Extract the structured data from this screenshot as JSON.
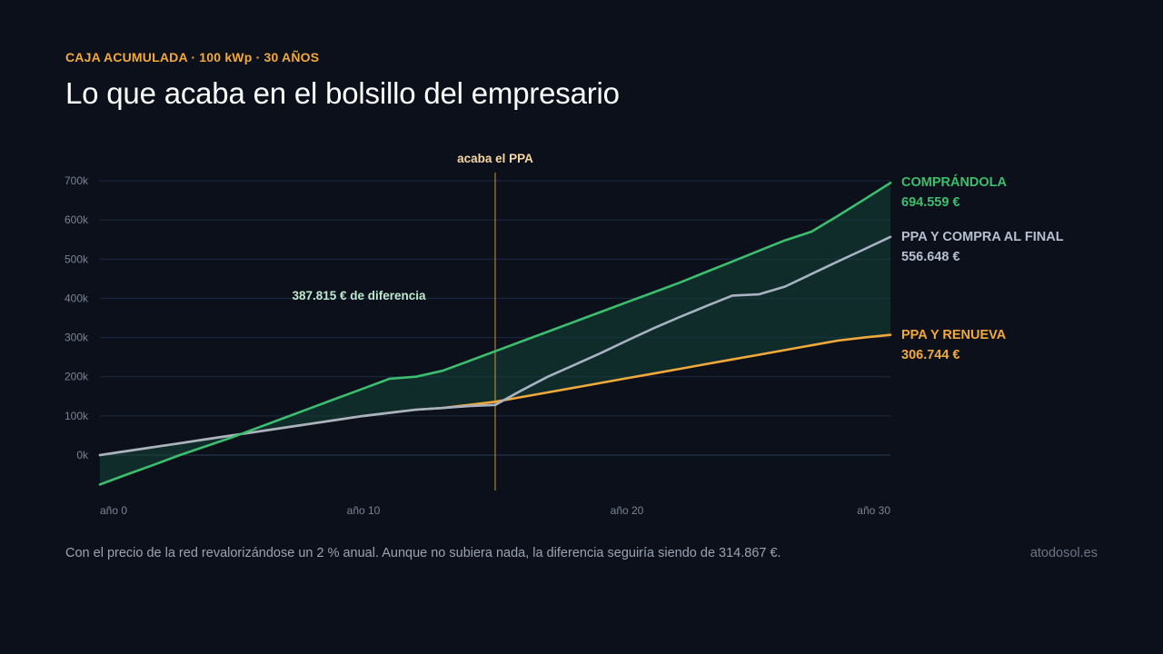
{
  "header": {
    "eyebrow": "CAJA ACUMULADA · 100 kWp · 30 AÑOS",
    "title": "Lo que acaba en el bolsillo del empresario"
  },
  "footer": {
    "note": "Con el precio de la red revalorizándose un 2 % anual. Aunque no subiera nada, la diferencia seguiría siendo de 314.867 €.",
    "brand": "atodosol.es"
  },
  "chart_data": {
    "type": "line",
    "x_ticks": [
      0,
      10,
      20,
      30
    ],
    "x_tick_labels": [
      "año 0",
      "año 10",
      "año 20",
      "año 30"
    ],
    "xlim": [
      0,
      30
    ],
    "ylim": [
      -80000,
      700000
    ],
    "y_ticks": [
      0,
      100000,
      200000,
      300000,
      400000,
      500000,
      600000,
      700000
    ],
    "y_tick_labels": [
      "0k",
      "100k",
      "200k",
      "300k",
      "400k",
      "500k",
      "600k",
      "700k"
    ],
    "grid": true,
    "marker": {
      "x": 15,
      "label": "acaba el PPA",
      "color": "#f2a93b"
    },
    "difference_label": "387.815 € de diferencia",
    "colors": {
      "green": "#3dbd6e",
      "gray": "#a8b2c3",
      "orange": "#f2a93b",
      "fill": "#14443a",
      "grid": "#1c2a45",
      "axis_text": "#7a8496"
    },
    "series": [
      {
        "name": "COMPRÁNDOLA",
        "value_label": "694.559 €",
        "color": "#3dbd6e",
        "x": [
          0,
          1,
          2,
          3,
          4,
          5,
          6,
          7,
          8,
          9,
          10,
          11,
          12,
          13,
          14,
          15,
          16,
          17,
          18,
          19,
          20,
          21,
          22,
          23,
          24,
          25,
          26,
          27,
          28,
          29,
          30
        ],
        "y": [
          -75000,
          -50000,
          -26000,
          -1000,
          22000,
          45000,
          70000,
          95000,
          120000,
          145000,
          170000,
          195000,
          200000,
          215000,
          240000,
          265000,
          290000,
          315000,
          340000,
          365000,
          390000,
          415000,
          440000,
          467000,
          494000,
          521000,
          548000,
          570000,
          610000,
          652000,
          694559
        ]
      },
      {
        "name": "PPA Y COMPRA AL FINAL",
        "value_label": "556.648 €",
        "color": "#a8b2c3",
        "x": [
          0,
          1,
          2,
          3,
          4,
          5,
          6,
          7,
          8,
          9,
          10,
          11,
          12,
          13,
          14,
          15,
          16,
          17,
          18,
          19,
          20,
          21,
          22,
          23,
          24,
          25,
          26,
          27,
          28,
          29,
          30
        ],
        "y": [
          0,
          10000,
          20000,
          30000,
          40000,
          50000,
          60000,
          70000,
          80000,
          90000,
          100000,
          108000,
          116000,
          120000,
          125000,
          128000,
          165000,
          200000,
          230000,
          260000,
          292000,
          323000,
          352000,
          380000,
          407000,
          410000,
          430000,
          462000,
          494000,
          525000,
          556648
        ]
      },
      {
        "name": "PPA Y RENUEVA",
        "value_label": "306.744 €",
        "color": "#f2a93b",
        "x": [
          0,
          1,
          2,
          3,
          4,
          5,
          6,
          7,
          8,
          9,
          10,
          11,
          12,
          13,
          14,
          15,
          16,
          17,
          18,
          19,
          20,
          21,
          22,
          23,
          24,
          25,
          26,
          27,
          28,
          29,
          30
        ],
        "y": [
          0,
          10000,
          20000,
          30000,
          40000,
          50000,
          60000,
          70000,
          80000,
          90000,
          100000,
          108000,
          116000,
          120000,
          128000,
          136000,
          148000,
          160000,
          172000,
          184000,
          196000,
          208000,
          220000,
          232000,
          244000,
          256000,
          268000,
          280000,
          292000,
          300000,
          306744
        ]
      }
    ]
  }
}
